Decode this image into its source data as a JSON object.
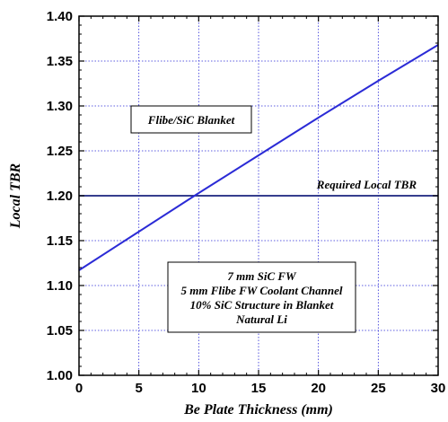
{
  "chart_data": {
    "type": "line",
    "title": "",
    "xlabel": "Be Plate Thickness (mm)",
    "ylabel": "Local TBR",
    "xlim": [
      0,
      30
    ],
    "ylim": [
      1.0,
      1.4
    ],
    "xticks": [
      "0",
      "5",
      "10",
      "15",
      "20",
      "25",
      "30"
    ],
    "yticks": [
      "1.00",
      "1.05",
      "1.10",
      "1.15",
      "1.20",
      "1.25",
      "1.30",
      "1.35",
      "1.40"
    ],
    "grid": true,
    "line_color": "#2b2bd6",
    "grid_color": "#2b2bd6",
    "series": [
      {
        "x": [
          0,
          5,
          10,
          15,
          20,
          25,
          30
        ],
        "y": [
          1.117,
          1.16,
          1.203,
          1.245,
          1.287,
          1.328,
          1.368
        ]
      }
    ],
    "reference_line": {
      "y": 1.2,
      "label": "Required Local TBR",
      "color": "#1a237e"
    },
    "annotations": {
      "blanket_label": "Flibe/SiC Blanket",
      "conditions": [
        "7 mm SiC FW",
        "5 mm Flibe FW Coolant Channel",
        "10% SiC Structure in Blanket",
        "Natural Li"
      ]
    }
  }
}
